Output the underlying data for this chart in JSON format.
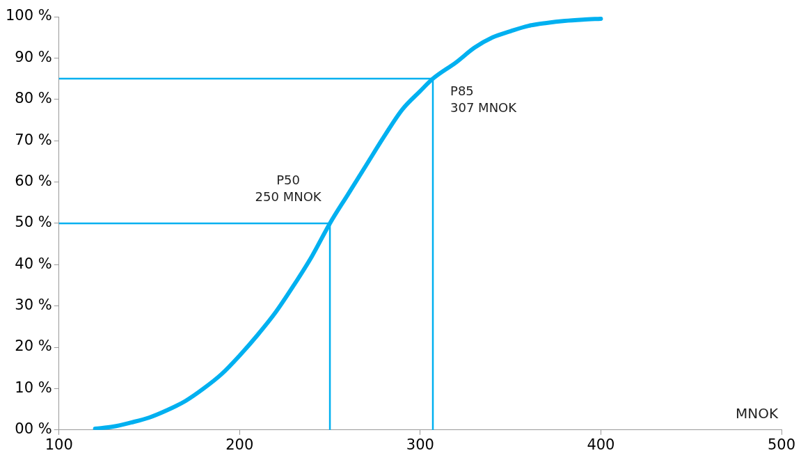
{
  "chart_data": {
    "type": "line",
    "xlabel": "MNOK",
    "series": [
      {
        "color": "#00b0f0",
        "x": [
          120,
          130,
          140,
          150,
          160,
          170,
          180,
          190,
          200,
          210,
          220,
          230,
          240,
          250,
          260,
          270,
          280,
          290,
          300,
          307,
          320,
          330,
          340,
          350,
          360,
          370,
          380,
          390,
          400
        ],
        "values": [
          0.3,
          0.8,
          1.8,
          3,
          4.8,
          7,
          10,
          13.5,
          18,
          23,
          28.5,
          35,
          42,
          50,
          57,
          64,
          71,
          77.5,
          82,
          85,
          89,
          92.5,
          95,
          96.5,
          97.8,
          98.5,
          99,
          99.3,
          99.5
        ]
      },
      {
        "type": "line",
        "color": "#00b0f0",
        "x": [
          100,
          250,
          250
        ],
        "values": [
          50,
          50,
          0
        ]
      },
      {
        "type": "line",
        "color": "#00b0f0",
        "x": [
          100,
          307,
          307
        ],
        "values": [
          85,
          85,
          0
        ]
      }
    ],
    "annotations": [
      {
        "text": "P50\n250 MNOK",
        "x": 250,
        "y": 50
      },
      {
        "text": "P85\n307 MNOK",
        "x": 307,
        "y": 85
      }
    ],
    "xlim": [
      100,
      500
    ],
    "xticks": [
      100,
      200,
      300,
      400,
      500
    ],
    "ylim": [
      0,
      100
    ],
    "yticks": [
      {
        "value": 0,
        "label": "00 %"
      },
      {
        "value": 10,
        "label": "10 %"
      },
      {
        "value": 20,
        "label": "20 %"
      },
      {
        "value": 30,
        "label": "30 %"
      },
      {
        "value": 40,
        "label": "40 %"
      },
      {
        "value": 50,
        "label": "50 %"
      },
      {
        "value": 60,
        "label": "60 %"
      },
      {
        "value": 70,
        "label": "70 %"
      },
      {
        "value": 80,
        "label": "80 %"
      },
      {
        "value": 90,
        "label": "90 %"
      },
      {
        "value": 100,
        "label": "100 %"
      }
    ],
    "grid": false,
    "legend": false,
    "marker": "none",
    "line_style": "solid"
  }
}
